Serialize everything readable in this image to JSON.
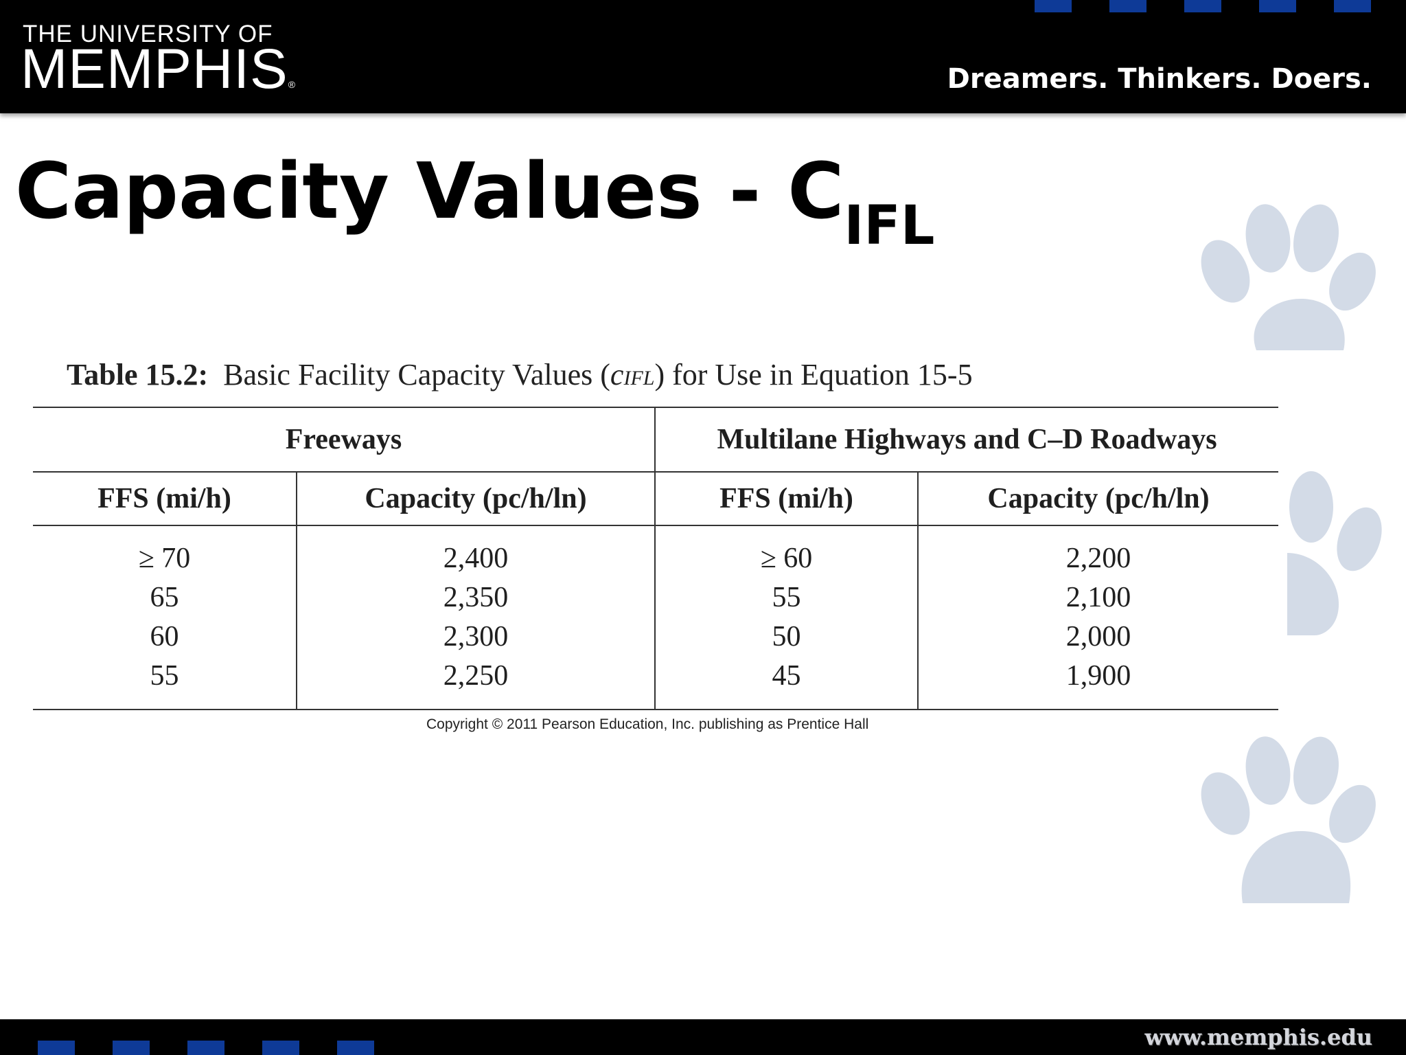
{
  "header": {
    "logo_top": "THE UNIVERSITY OF",
    "logo_main": "MEMPHIS",
    "logo_reg": "®",
    "tagline": "Dreamers. Thinkers. Doers."
  },
  "slide": {
    "title": "Capacity Values - C",
    "title_sub": "IFL"
  },
  "table": {
    "caption_bold": "Table 15.2:",
    "caption_text": "Basic Facility Capacity Values (",
    "caption_c": "c",
    "caption_sub": "IFL",
    "caption_end": ") for Use in Equation 15-5",
    "group_headers": [
      "Freeways",
      "Multilane Highways and C–D Roadways"
    ],
    "column_headers": [
      "FFS (mi/h)",
      "Capacity (pc/h/ln)",
      "FFS (mi/h)",
      "Capacity (pc/h/ln)"
    ],
    "rows": [
      [
        "≥ 70",
        "2,400",
        "≥ 60",
        "2,200"
      ],
      [
        "65",
        "2,350",
        "55",
        "2,100"
      ],
      [
        "60",
        "2,300",
        "50",
        "2,000"
      ],
      [
        "55",
        "2,250",
        "45",
        "1,900"
      ]
    ],
    "copyright": "Copyright © 2011 Pearson Education, Inc. publishing as Prentice Hall"
  },
  "footer": {
    "website": "www.memphis.edu"
  },
  "colors": {
    "brand_blue": "#0e3a97",
    "paw": "#d3dbe7",
    "bar": "#000000"
  }
}
